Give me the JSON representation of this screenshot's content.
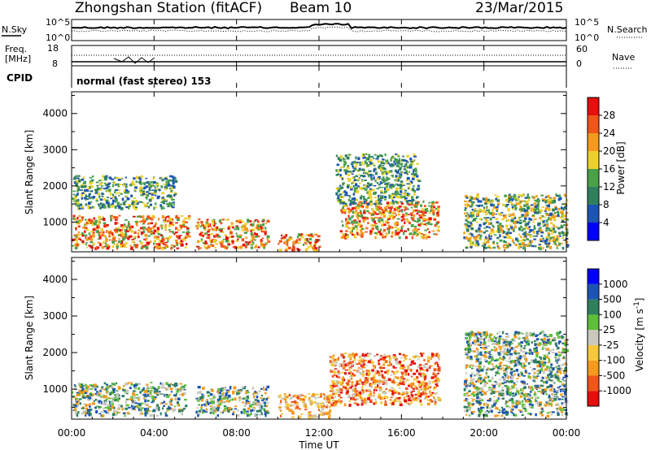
{
  "header": {
    "station": "Zhongshan Station (fitACF)",
    "beam": "Beam 10",
    "date": "23/Mar/2015"
  },
  "top_panels": {
    "nsky_label": "N.Sky",
    "nsky_ticks": [
      "10^5",
      "10^0"
    ],
    "nsearch_label": "N.Search",
    "nsearch_ticks": [
      "10^5",
      "10^0"
    ],
    "freq_label_1": "Freq.",
    "freq_label_2": "[MHz]",
    "freq_ticks": [
      "18",
      "8"
    ],
    "nave_label": "Nave",
    "nave_ticks": [
      "60",
      "0"
    ],
    "cpid_label": "CPID",
    "cpid_value": "normal (fast stereo) 153"
  },
  "chart_data": [
    {
      "type": "heatmap",
      "name": "power",
      "ylabel": "Slant Range [km]",
      "ylim": [
        180,
        4600
      ],
      "yticks": [
        "4000",
        "3000",
        "2000",
        "1000"
      ],
      "ytick_values": [
        4000,
        3000,
        2000,
        1000
      ],
      "colorbar": {
        "label": "Power [dB]",
        "ticks": [
          "28",
          "24",
          "20",
          "16",
          "12",
          "8",
          "4"
        ],
        "colors": [
          "#0000ff",
          "#1c54b4",
          "#2f7f5f",
          "#4ba04a",
          "#ecd12a",
          "#f59a1a",
          "#f2541a",
          "#e60e0e"
        ]
      },
      "echo_regions": [
        {
          "t": [
            0.0,
            5.7
          ],
          "r": [
            300,
            1200
          ],
          "level": "strong"
        },
        {
          "t": [
            0.0,
            5.0
          ],
          "r": [
            1400,
            2300
          ],
          "level": "weak"
        },
        {
          "t": [
            6.0,
            9.5
          ],
          "r": [
            300,
            1100
          ],
          "level": "strong"
        },
        {
          "t": [
            10.0,
            12.0
          ],
          "r": [
            250,
            700
          ],
          "level": "strong"
        },
        {
          "t": [
            13.0,
            17.8
          ],
          "r": [
            600,
            1600
          ],
          "level": "strong"
        },
        {
          "t": [
            12.8,
            16.8
          ],
          "r": [
            1500,
            2900
          ],
          "level": "weak"
        },
        {
          "t": [
            19.0,
            24.0
          ],
          "r": [
            300,
            1800
          ],
          "level": "medium"
        }
      ]
    },
    {
      "type": "heatmap",
      "name": "velocity",
      "ylabel": "Slant Range [km]",
      "ylim": [
        180,
        4600
      ],
      "yticks": [
        "4000",
        "3000",
        "2000",
        "1000"
      ],
      "ytick_values": [
        4000,
        3000,
        2000,
        1000
      ],
      "colorbar": {
        "label": "Velocity [m s^-1]",
        "ticks": [
          "1000",
          "500",
          "100",
          "25",
          "-25",
          "-100",
          "-500",
          "-1000"
        ],
        "colors": [
          "#e60e0e",
          "#f2541a",
          "#f59a1a",
          "#f6c93a",
          "#c8c8be",
          "#5fbf3a",
          "#2f7f5f",
          "#1c54b4",
          "#0000ff"
        ]
      },
      "echo_regions": [
        {
          "t": [
            0.0,
            5.5
          ],
          "r": [
            300,
            1200
          ],
          "level": "mixed-green-blue"
        },
        {
          "t": [
            6.0,
            9.5
          ],
          "r": [
            300,
            1100
          ],
          "level": "mixed-green-blue"
        },
        {
          "t": [
            10.0,
            12.5
          ],
          "r": [
            250,
            900
          ],
          "level": "orange"
        },
        {
          "t": [
            12.5,
            17.8
          ],
          "r": [
            600,
            2000
          ],
          "level": "orange-red"
        },
        {
          "t": [
            19.0,
            24.0
          ],
          "r": [
            300,
            2600
          ],
          "level": "mixed"
        }
      ]
    }
  ],
  "x_axis": {
    "label": "Time UT",
    "ticks": [
      "00:00",
      "04:00",
      "08:00",
      "12:00",
      "16:00",
      "20:00",
      "00:00"
    ],
    "tick_hours": [
      0,
      4,
      8,
      12,
      16,
      20,
      24
    ]
  }
}
